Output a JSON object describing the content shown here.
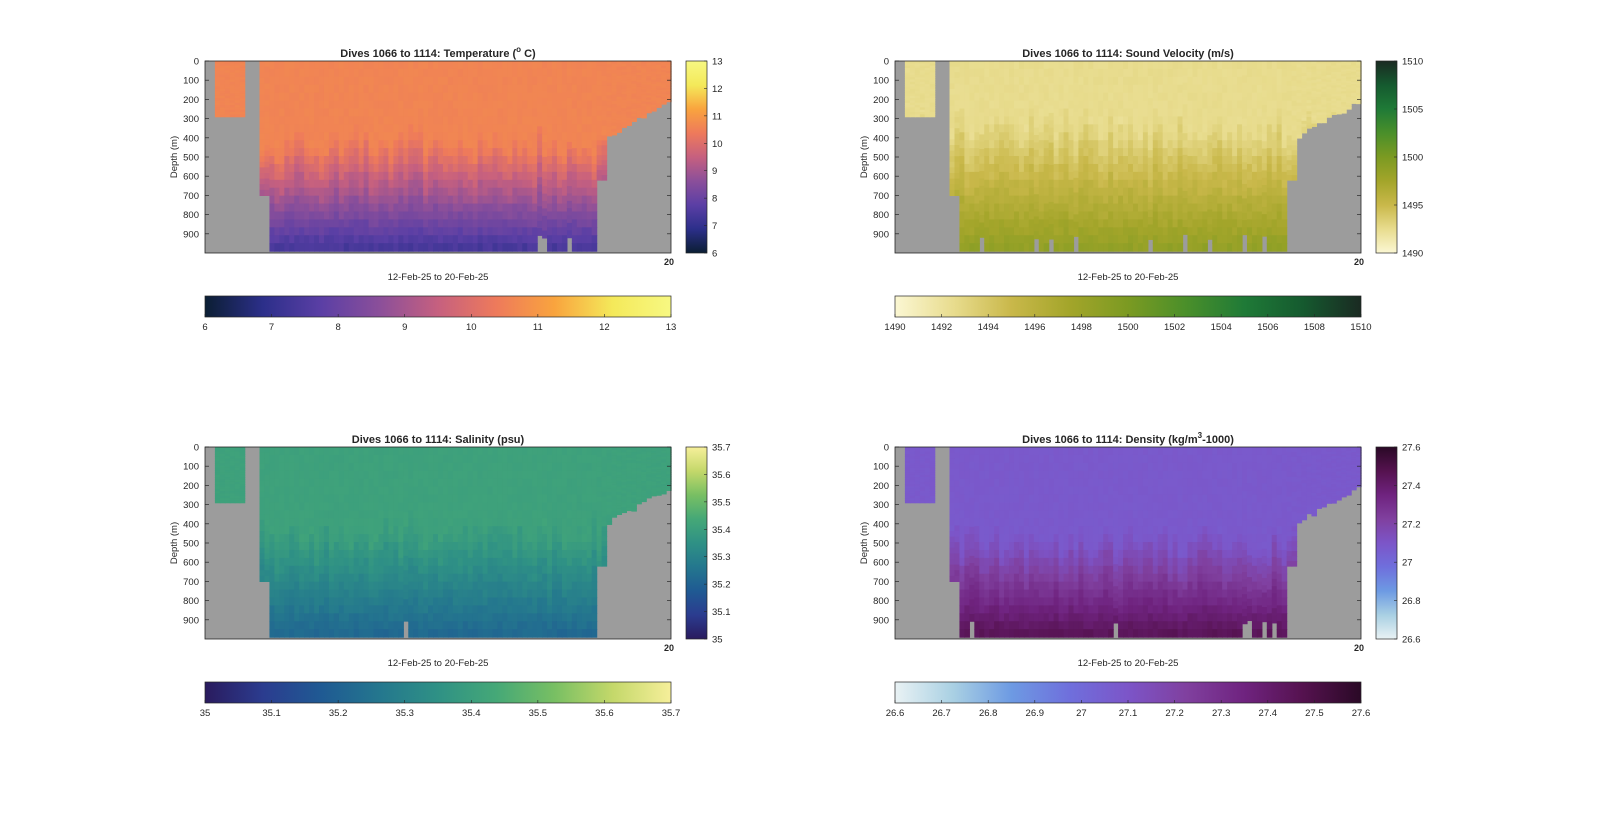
{
  "chart_data": [
    {
      "type": "heatmap",
      "title": "Dives 1066 to 1114: Temperature (",
      "title_sup": "o",
      "title_end": " C)",
      "ylabel": "Depth (m)",
      "xlabel": "12-Feb-25 to 20-Feb-25",
      "x_tick_label": "20",
      "y_ticks": [
        0,
        100,
        200,
        300,
        400,
        500,
        600,
        700,
        800,
        900
      ],
      "ylim": [
        0,
        1000
      ],
      "colorbar_side": {
        "min": 6,
        "max": 13,
        "ticks": [
          6,
          7,
          8,
          9,
          10,
          11,
          12,
          13
        ]
      },
      "colorbar_bottom": {
        "min": 6,
        "max": 13,
        "ticks": [
          6,
          7,
          8,
          9,
          10,
          11,
          12,
          13
        ]
      },
      "colormap": [
        "#0b1e33",
        "#2c2f8a",
        "#5b3fa5",
        "#8b4f9a",
        "#c6607f",
        "#ee7a5b",
        "#f9a43e",
        "#f4e95a",
        "#f7f882"
      ],
      "surface_value": 10.6,
      "deep_value": 7.4,
      "mixed_layer_depth": 400
    },
    {
      "type": "heatmap",
      "title": "Dives 1066 to 1114: Sound Velocity (m/s)",
      "ylabel": "Depth (m)",
      "xlabel": "12-Feb-25 to 20-Feb-25",
      "x_tick_label": "20",
      "y_ticks": [
        0,
        100,
        200,
        300,
        400,
        500,
        600,
        700,
        800,
        900
      ],
      "ylim": [
        0,
        1000
      ],
      "colorbar_side": {
        "min": 1490,
        "max": 1510,
        "ticks": [
          1490,
          1495,
          1500,
          1505,
          1510
        ]
      },
      "colorbar_bottom": {
        "min": 1490,
        "max": 1510,
        "ticks": [
          1490,
          1492,
          1494,
          1496,
          1498,
          1500,
          1502,
          1504,
          1506,
          1508,
          1510
        ]
      },
      "colormap": [
        "#fbf7d3",
        "#e8dc8e",
        "#c9b84a",
        "#a3a52a",
        "#7b9a22",
        "#4a8f2a",
        "#1f7a37",
        "#155a2f",
        "#1a2a22"
      ],
      "surface_value": 1492.5,
      "deep_value": 1498.5,
      "mixed_layer_depth": 300
    },
    {
      "type": "heatmap",
      "title": "Dives 1066 to 1114: Salinity (psu)",
      "ylabel": "Depth (m)",
      "xlabel": "12-Feb-25 to 20-Feb-25",
      "x_tick_label": "20",
      "y_ticks": [
        0,
        100,
        200,
        300,
        400,
        500,
        600,
        700,
        800,
        900
      ],
      "ylim": [
        0,
        1000
      ],
      "colorbar_side": {
        "min": 35,
        "max": 35.7,
        "ticks": [
          35,
          35.1,
          35.2,
          35.3,
          35.4,
          35.5,
          35.6,
          35.7
        ]
      },
      "colorbar_bottom": {
        "min": 35,
        "max": 35.7,
        "ticks": [
          35,
          35.1,
          35.2,
          35.3,
          35.4,
          35.5,
          35.6,
          35.7
        ]
      },
      "colormap": [
        "#2a1b5e",
        "#2b3c8f",
        "#1f5a93",
        "#24778e",
        "#2f9185",
        "#45a877",
        "#78bf63",
        "#c4d86a",
        "#f6ef9a"
      ],
      "surface_value": 35.41,
      "deep_value": 35.22,
      "mixed_layer_depth": 400
    },
    {
      "type": "heatmap",
      "title": "Dives 1066 to 1114: Density (kg/m",
      "title_sup": "3",
      "title_end": "-1000)",
      "ylabel": "Depth (m)",
      "xlabel": "12-Feb-25 to 20-Feb-25",
      "x_tick_label": "20",
      "y_ticks": [
        0,
        100,
        200,
        300,
        400,
        500,
        600,
        700,
        800,
        900
      ],
      "ylim": [
        0,
        1000
      ],
      "colorbar_side": {
        "min": 26.6,
        "max": 27.6,
        "ticks": [
          26.6,
          26.8,
          27,
          27.2,
          27.4,
          27.6
        ]
      },
      "colorbar_bottom": {
        "min": 26.6,
        "max": 27.6,
        "ticks": [
          26.6,
          26.7,
          26.8,
          26.9,
          27,
          27.1,
          27.2,
          27.3,
          27.4,
          27.5,
          27.6
        ]
      },
      "colormap": [
        "#e9f2f4",
        "#a9d0e3",
        "#6d9ae3",
        "#6f6fdc",
        "#7c55c8",
        "#80409f",
        "#6f237f",
        "#55124f",
        "#2a0926"
      ],
      "surface_value": 27.08,
      "deep_value": 27.45,
      "mixed_layer_depth": 450
    }
  ]
}
